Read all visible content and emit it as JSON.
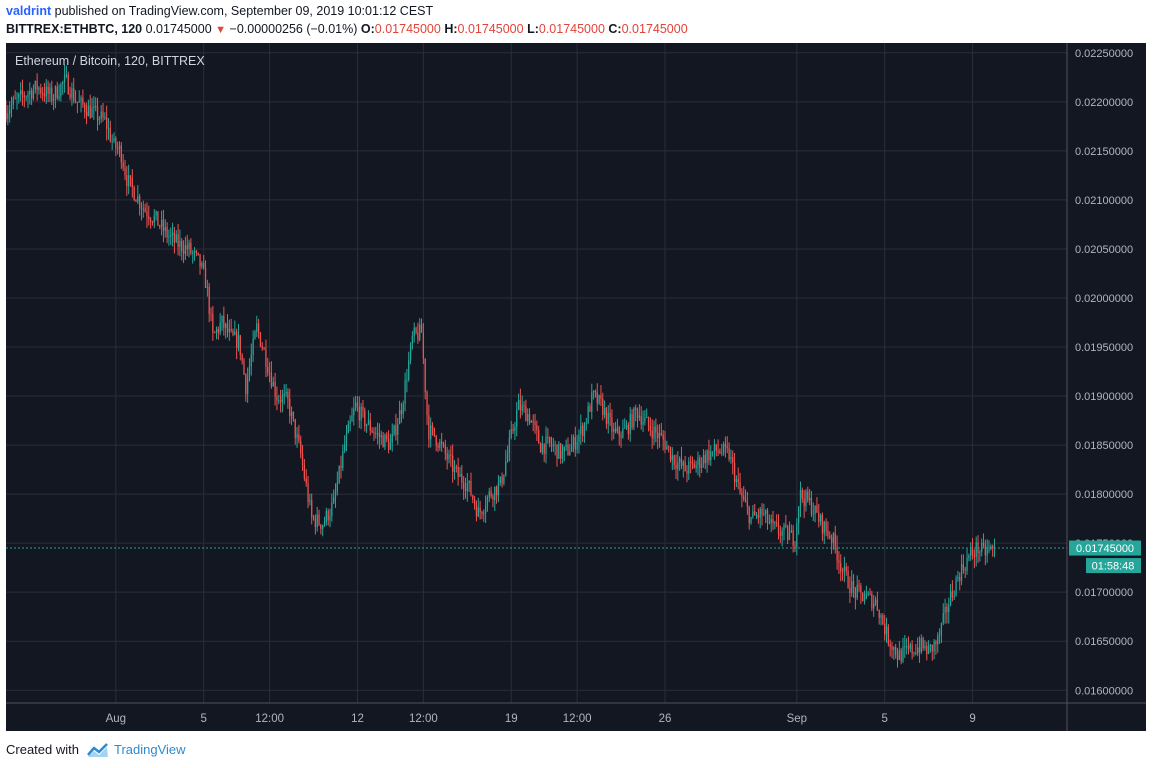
{
  "header": {
    "author": "valdrint",
    "published_text": "published on TradingView.com, September 09, 2019 10:01:12 CEST",
    "symbol": "BITTREX:ETHBTC, 120",
    "last_price": "0.01745000",
    "change_arrow_icon": "down-triangle-icon",
    "change": "−0.00000256 (−0.01%)",
    "o_label": "O:",
    "o_value": "0.01745000",
    "h_label": "H:",
    "h_value": "0.01745000",
    "l_label": "L:",
    "l_value": "0.01745000",
    "c_label": "C:",
    "c_value": "0.01745000"
  },
  "footer": {
    "created_with": "Created with",
    "brand": "TradingView",
    "logo_icon": "tradingview-logo-icon"
  },
  "colors": {
    "background": "#131722",
    "grid": "#2a2e39",
    "up": "#26a69a",
    "down": "#ef5350",
    "text": "#b2b5be",
    "price_line": "#26a69a",
    "author": "#2962ff",
    "ohlc_value": "#e0443a"
  },
  "chart_data": {
    "type": "candlestick",
    "title": "Ethereum / Bitcoin, 120, BITTREX",
    "ylim": [
      0.01587,
      0.0226
    ],
    "y_ticks": [
      "0.02250000",
      "0.02200000",
      "0.02150000",
      "0.02100000",
      "0.02050000",
      "0.02000000",
      "0.01950000",
      "0.01900000",
      "0.01850000",
      "0.01800000",
      "0.01750000",
      "0.01700000",
      "0.01650000",
      "0.01600000"
    ],
    "y_tick_values": [
      0.0225,
      0.022,
      0.0215,
      0.021,
      0.0205,
      0.02,
      0.0195,
      0.019,
      0.0185,
      0.018,
      0.0175,
      0.017,
      0.0165,
      0.016
    ],
    "x_ticks": [
      "Aug",
      "5",
      "12:00",
      "12",
      "12:00",
      "19",
      "12:00",
      "26",
      "Sep",
      "5",
      "9"
    ],
    "x_tick_times": [
      5.0,
      9.0,
      12.0,
      16.0,
      19.0,
      23.0,
      26.0,
      30.0,
      36.0,
      40.0,
      44.0
    ],
    "x_range_days": [
      0,
      48.3
    ],
    "last_price_label": "0.01745000",
    "last_price": 0.01745,
    "countdown": "01:58:48",
    "grid": true,
    "price_path": [
      [
        0.0,
        0.0219
      ],
      [
        0.8,
        0.02205
      ],
      [
        1.5,
        0.02215
      ],
      [
        2.2,
        0.02205
      ],
      [
        2.8,
        0.02222
      ],
      [
        3.3,
        0.022
      ],
      [
        4.0,
        0.0219
      ],
      [
        4.6,
        0.0218
      ],
      [
        5.0,
        0.02155
      ],
      [
        5.3,
        0.0215
      ],
      [
        5.6,
        0.0212
      ],
      [
        6.0,
        0.02105
      ],
      [
        6.4,
        0.0209
      ],
      [
        6.9,
        0.0208
      ],
      [
        7.4,
        0.02065
      ],
      [
        7.9,
        0.02055
      ],
      [
        8.4,
        0.0205
      ],
      [
        8.9,
        0.02035
      ],
      [
        9.2,
        0.02015
      ],
      [
        9.5,
        0.0196
      ],
      [
        9.9,
        0.01975
      ],
      [
        10.3,
        0.0196
      ],
      [
        10.7,
        0.01955
      ],
      [
        11.0,
        0.0191
      ],
      [
        11.5,
        0.0197
      ],
      [
        11.9,
        0.0194
      ],
      [
        12.4,
        0.019
      ],
      [
        12.9,
        0.01895
      ],
      [
        13.5,
        0.0184
      ],
      [
        14.0,
        0.01775
      ],
      [
        14.5,
        0.0177
      ],
      [
        15.0,
        0.0179
      ],
      [
        15.5,
        0.0185
      ],
      [
        16.0,
        0.0189
      ],
      [
        16.4,
        0.01875
      ],
      [
        17.0,
        0.0186
      ],
      [
        17.6,
        0.0185
      ],
      [
        18.1,
        0.0189
      ],
      [
        18.6,
        0.0196
      ],
      [
        19.0,
        0.01965
      ],
      [
        19.3,
        0.01865
      ],
      [
        19.6,
        0.0186
      ],
      [
        20.1,
        0.0184
      ],
      [
        20.6,
        0.0182
      ],
      [
        21.1,
        0.0181
      ],
      [
        21.6,
        0.0178
      ],
      [
        22.1,
        0.018
      ],
      [
        22.6,
        0.0181
      ],
      [
        23.0,
        0.0185
      ],
      [
        23.4,
        0.0189
      ],
      [
        23.9,
        0.0188
      ],
      [
        24.4,
        0.0185
      ],
      [
        24.9,
        0.0185
      ],
      [
        25.4,
        0.0184
      ],
      [
        25.9,
        0.0185
      ],
      [
        26.4,
        0.0187
      ],
      [
        26.8,
        0.019
      ],
      [
        27.2,
        0.0189
      ],
      [
        27.8,
        0.0186
      ],
      [
        28.3,
        0.01865
      ],
      [
        28.8,
        0.01885
      ],
      [
        29.3,
        0.0187
      ],
      [
        30.0,
        0.01855
      ],
      [
        30.5,
        0.01835
      ],
      [
        31.0,
        0.01825
      ],
      [
        31.5,
        0.0183
      ],
      [
        32.0,
        0.0184
      ],
      [
        32.5,
        0.01845
      ],
      [
        33.0,
        0.0184
      ],
      [
        33.5,
        0.018
      ],
      [
        34.0,
        0.01775
      ],
      [
        34.5,
        0.0178
      ],
      [
        35.0,
        0.01765
      ],
      [
        35.5,
        0.0176
      ],
      [
        36.0,
        0.01755
      ],
      [
        36.2,
        0.018
      ],
      [
        36.7,
        0.0179
      ],
      [
        37.2,
        0.0177
      ],
      [
        37.7,
        0.01755
      ],
      [
        38.2,
        0.0172
      ],
      [
        38.7,
        0.017
      ],
      [
        39.2,
        0.01695
      ],
      [
        39.7,
        0.0169
      ],
      [
        40.2,
        0.01655
      ],
      [
        40.7,
        0.01635
      ],
      [
        41.2,
        0.0164
      ],
      [
        41.7,
        0.01645
      ],
      [
        42.1,
        0.0164
      ],
      [
        42.5,
        0.0165
      ],
      [
        43.0,
        0.0169
      ],
      [
        43.5,
        0.0172
      ],
      [
        43.9,
        0.01735
      ],
      [
        44.3,
        0.01745
      ],
      [
        44.6,
        0.0174
      ],
      [
        45.0,
        0.01745
      ]
    ]
  }
}
